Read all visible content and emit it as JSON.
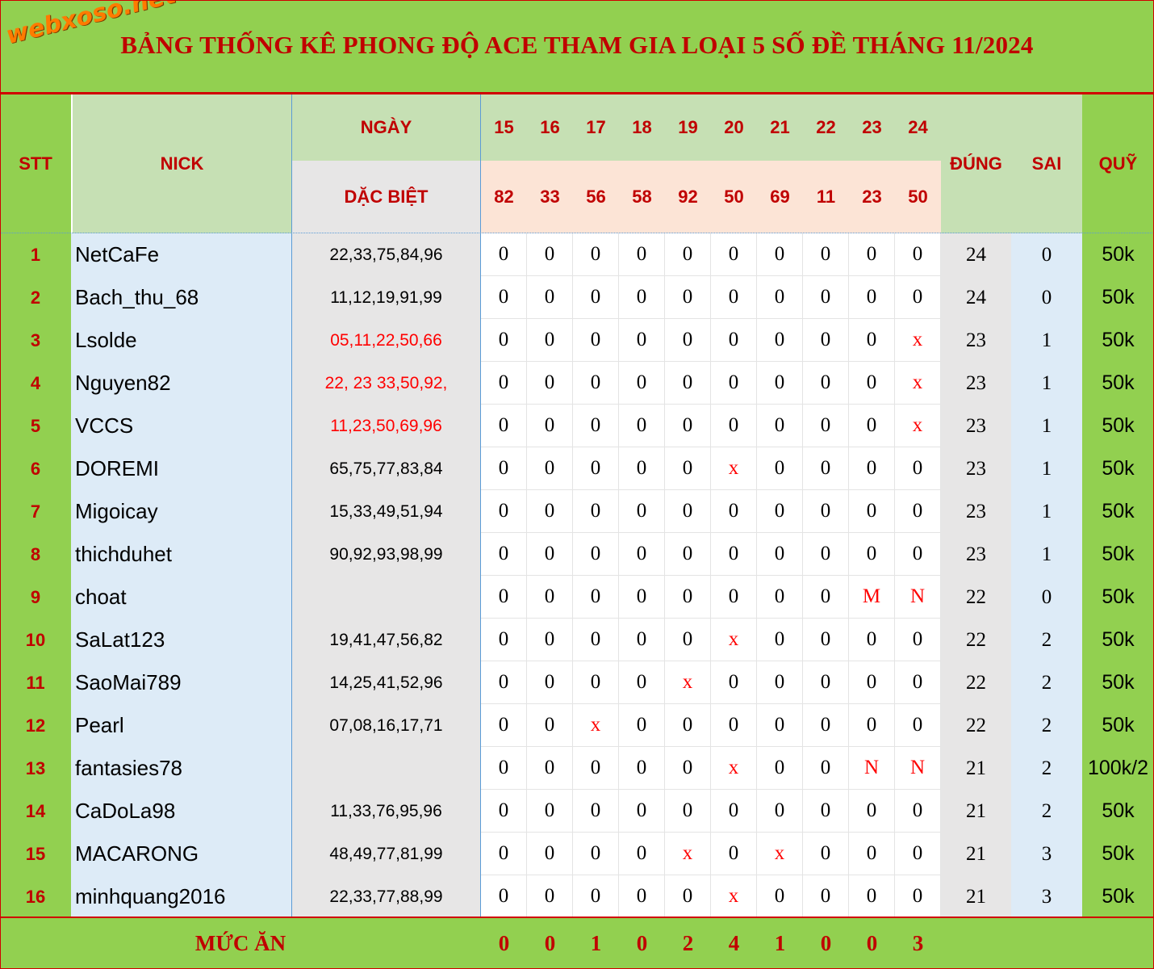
{
  "logo_text": "webxoso.net",
  "title": "BẢNG THỐNG KÊ PHONG ĐỘ ACE THAM GIA LOẠI 5 SỐ ĐỀ THÁNG 11/2024",
  "headers": {
    "stt": "STT",
    "nick": "NICK",
    "ngay": "NGÀY",
    "dac_biet": "DẶC BIỆT",
    "dung": "ĐÚNG",
    "sai": "SAI",
    "quy": "QUỸ"
  },
  "days": [
    "15",
    "16",
    "17",
    "18",
    "19",
    "20",
    "21",
    "22",
    "23",
    "24"
  ],
  "specials": [
    "82",
    "33",
    "56",
    "58",
    "92",
    "50",
    "69",
    "11",
    "23",
    "50"
  ],
  "rows": [
    {
      "stt": "1",
      "nick": "NetCaFe",
      "numbers": "22,33,75,84,96",
      "red": false,
      "marks": [
        "0",
        "0",
        "0",
        "0",
        "0",
        "0",
        "0",
        "0",
        "0",
        "0"
      ],
      "dung": "24",
      "sai": "0",
      "quy": "50k"
    },
    {
      "stt": "2",
      "nick": "Bach_thu_68",
      "numbers": "11,12,19,91,99",
      "red": false,
      "marks": [
        "0",
        "0",
        "0",
        "0",
        "0",
        "0",
        "0",
        "0",
        "0",
        "0"
      ],
      "dung": "24",
      "sai": "0",
      "quy": "50k"
    },
    {
      "stt": "3",
      "nick": "Lsolde",
      "numbers": "05,11,22,50,66",
      "red": true,
      "marks": [
        "0",
        "0",
        "0",
        "0",
        "0",
        "0",
        "0",
        "0",
        "0",
        "x"
      ],
      "dung": "23",
      "sai": "1",
      "quy": "50k"
    },
    {
      "stt": "4",
      "nick": "Nguyen82",
      "numbers": "22, 23 33,50,92,",
      "red": true,
      "marks": [
        "0",
        "0",
        "0",
        "0",
        "0",
        "0",
        "0",
        "0",
        "0",
        "x"
      ],
      "dung": "23",
      "sai": "1",
      "quy": "50k"
    },
    {
      "stt": "5",
      "nick": "VCCS",
      "numbers": "11,23,50,69,96",
      "red": true,
      "marks": [
        "0",
        "0",
        "0",
        "0",
        "0",
        "0",
        "0",
        "0",
        "0",
        "x"
      ],
      "dung": "23",
      "sai": "1",
      "quy": "50k"
    },
    {
      "stt": "6",
      "nick": "DOREMI",
      "numbers": "65,75,77,83,84",
      "red": false,
      "marks": [
        "0",
        "0",
        "0",
        "0",
        "0",
        "x",
        "0",
        "0",
        "0",
        "0"
      ],
      "dung": "23",
      "sai": "1",
      "quy": "50k"
    },
    {
      "stt": "7",
      "nick": "Migoicay",
      "numbers": "15,33,49,51,94",
      "red": false,
      "marks": [
        "0",
        "0",
        "0",
        "0",
        "0",
        "0",
        "0",
        "0",
        "0",
        "0"
      ],
      "dung": "23",
      "sai": "1",
      "quy": "50k"
    },
    {
      "stt": "8",
      "nick": "thichduhet",
      "numbers": "90,92,93,98,99",
      "red": false,
      "marks": [
        "0",
        "0",
        "0",
        "0",
        "0",
        "0",
        "0",
        "0",
        "0",
        "0"
      ],
      "dung": "23",
      "sai": "1",
      "quy": "50k"
    },
    {
      "stt": "9",
      "nick": "choat",
      "numbers": "",
      "red": false,
      "marks": [
        "0",
        "0",
        "0",
        "0",
        "0",
        "0",
        "0",
        "0",
        "M",
        "N"
      ],
      "dung": "22",
      "sai": "0",
      "quy": "50k"
    },
    {
      "stt": "10",
      "nick": "SaLat123",
      "numbers": "19,41,47,56,82",
      "red": false,
      "marks": [
        "0",
        "0",
        "0",
        "0",
        "0",
        "x",
        "0",
        "0",
        "0",
        "0"
      ],
      "dung": "22",
      "sai": "2",
      "quy": "50k"
    },
    {
      "stt": "11",
      "nick": "SaoMai789",
      "numbers": "14,25,41,52,96",
      "red": false,
      "marks": [
        "0",
        "0",
        "0",
        "0",
        "x",
        "0",
        "0",
        "0",
        "0",
        "0"
      ],
      "dung": "22",
      "sai": "2",
      "quy": "50k"
    },
    {
      "stt": "12",
      "nick": "Pearl",
      "numbers": "07,08,16,17,71",
      "red": false,
      "marks": [
        "0",
        "0",
        "x",
        "0",
        "0",
        "0",
        "0",
        "0",
        "0",
        "0"
      ],
      "dung": "22",
      "sai": "2",
      "quy": "50k"
    },
    {
      "stt": "13",
      "nick": "fantasies78",
      "numbers": "",
      "red": false,
      "marks": [
        "0",
        "0",
        "0",
        "0",
        "0",
        "x",
        "0",
        "0",
        "N",
        "N"
      ],
      "dung": "21",
      "sai": "2",
      "quy": "100k/2"
    },
    {
      "stt": "14",
      "nick": "CaDoLa98",
      "numbers": "11,33,76,95,96",
      "red": false,
      "marks": [
        "0",
        "0",
        "0",
        "0",
        "0",
        "0",
        "0",
        "0",
        "0",
        "0"
      ],
      "dung": "21",
      "sai": "2",
      "quy": "50k"
    },
    {
      "stt": "15",
      "nick": "MACARONG",
      "numbers": "48,49,77,81,99",
      "red": false,
      "marks": [
        "0",
        "0",
        "0",
        "0",
        "x",
        "0",
        "x",
        "0",
        "0",
        "0"
      ],
      "dung": "21",
      "sai": "3",
      "quy": "50k"
    },
    {
      "stt": "16",
      "nick": "minhquang2016",
      "numbers": "22,33,77,88,99",
      "red": false,
      "marks": [
        "0",
        "0",
        "0",
        "0",
        "0",
        "x",
        "0",
        "0",
        "0",
        "0"
      ],
      "dung": "21",
      "sai": "3",
      "quy": "50k"
    }
  ],
  "footer": {
    "label": "MỨC ĂN",
    "values": [
      "0",
      "0",
      "1",
      "0",
      "2",
      "4",
      "1",
      "0",
      "0",
      "3"
    ]
  },
  "colors": {
    "green": "#92d050",
    "light_green": "#c6e0b4",
    "peach": "#fce4d6",
    "light_blue": "#ddebf7",
    "gray": "#e7e6e6",
    "red": "#c00000"
  }
}
